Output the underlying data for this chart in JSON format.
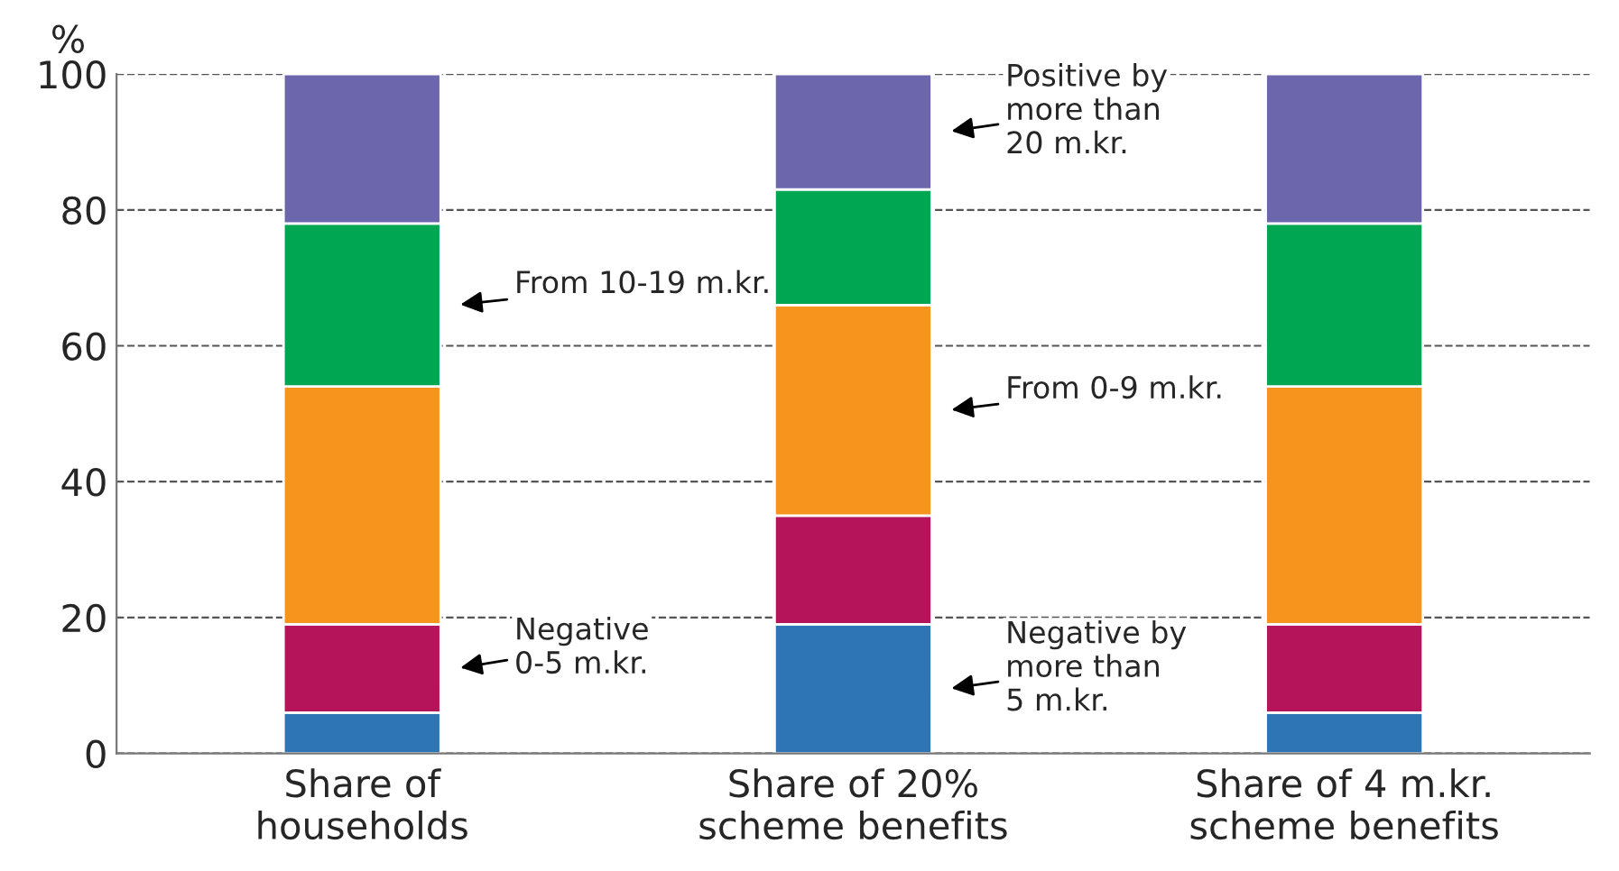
{
  "chart_data": {
    "type": "bar",
    "stacked": true,
    "ylabel": "%",
    "categories": [
      "Share of\nhouseholds",
      "Share of 20%\nscheme benefits",
      "Share of 4 m.kr.\nscheme benefits"
    ],
    "series": [
      {
        "name": "Negative by\nmore than\n5 m.kr.",
        "color": "#2e75b6",
        "values": [
          6,
          19,
          6
        ]
      },
      {
        "name": "Negative\n0-5 m.kr.",
        "color": "#b5135a",
        "values": [
          13,
          16,
          13
        ]
      },
      {
        "name": "From 0-9 m.kr.",
        "color": "#f7941d",
        "values": [
          35,
          31,
          35
        ]
      },
      {
        "name": "From 10-19 m.kr.",
        "color": "#00a651",
        "values": [
          24,
          17,
          24
        ]
      },
      {
        "name": "Positive by\nmore than\n20 m.kr.",
        "color": "#6c67ad",
        "values": [
          22,
          17,
          22
        ]
      }
    ],
    "ylim": [
      0,
      100
    ],
    "yticks": [
      0,
      20,
      40,
      60,
      80,
      100
    ],
    "grid": "y",
    "legend": false
  }
}
